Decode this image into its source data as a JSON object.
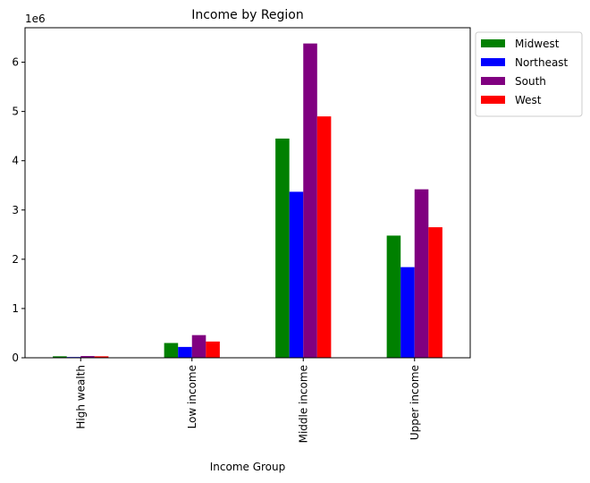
{
  "chart_data": {
    "type": "bar",
    "title": "Income by Region",
    "xlabel": "Income Group",
    "ylabel": "",
    "y_offset_label": "1e6",
    "categories": [
      "High wealth",
      "Low income",
      "Middle income",
      "Upper income"
    ],
    "series": [
      {
        "name": "Midwest",
        "color": "#008000",
        "values": [
          30000,
          300000,
          4450000,
          2480000
        ]
      },
      {
        "name": "Northeast",
        "color": "#0000ff",
        "values": [
          15000,
          220000,
          3370000,
          1840000
        ]
      },
      {
        "name": "South",
        "color": "#800080",
        "values": [
          35000,
          460000,
          6380000,
          3420000
        ]
      },
      {
        "name": "West",
        "color": "#ff0000",
        "values": [
          30000,
          330000,
          4900000,
          2650000
        ]
      }
    ],
    "ylim": [
      0,
      6700000
    ],
    "y_ticks": [
      0,
      1000000,
      2000000,
      3000000,
      4000000,
      5000000,
      6000000
    ],
    "y_tick_labels": [
      "0",
      "1",
      "2",
      "3",
      "4",
      "5",
      "6"
    ],
    "legend_position": "outside upper right",
    "grid": false
  }
}
